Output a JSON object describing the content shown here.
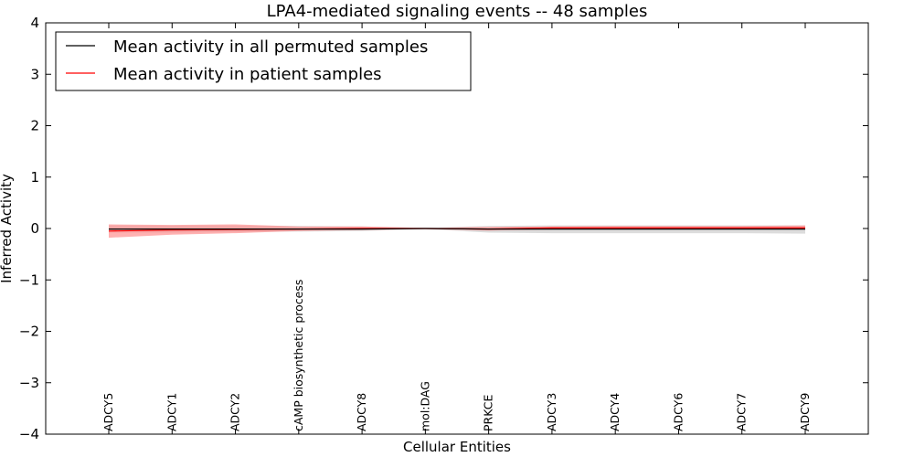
{
  "chart_data": {
    "type": "line",
    "title": "LPA4-mediated signaling events -- 48 samples",
    "xlabel": "Cellular Entities",
    "ylabel": "Inferred Activity",
    "ylim": [
      -4,
      4
    ],
    "yticks": [
      -4,
      -3,
      -2,
      -1,
      0,
      1,
      2,
      3,
      4
    ],
    "ytick_labels": [
      "−4",
      "−3",
      "−2",
      "−1",
      "0",
      "1",
      "2",
      "3",
      "4"
    ],
    "grid": false,
    "legend_position": "top-left",
    "categories": [
      "ADCY5",
      "ADCY1",
      "ADCY2",
      "cAMP biosynthetic process",
      "ADCY8",
      "mol:DAG",
      "PRKCE",
      "ADCY3",
      "ADCY4",
      "ADCY6",
      "ADCY7",
      "ADCY9"
    ],
    "series": [
      {
        "name": "Mean activity in all permuted samples",
        "color": "#000000",
        "values": [
          -0.01,
          -0.01,
          -0.01,
          -0.01,
          -0.01,
          0.0,
          -0.01,
          -0.01,
          -0.01,
          -0.01,
          -0.01,
          -0.01
        ],
        "band_lower": [
          -0.08,
          -0.08,
          -0.07,
          -0.06,
          -0.05,
          -0.01,
          -0.08,
          -0.09,
          -0.09,
          -0.09,
          -0.09,
          -0.1
        ],
        "band_upper": [
          0.06,
          0.06,
          0.06,
          0.05,
          0.04,
          0.01,
          0.05,
          0.06,
          0.06,
          0.06,
          0.06,
          0.06
        ],
        "band_color": "#c0c0c0"
      },
      {
        "name": "Mean activity in patient samples",
        "color": "#ff0000",
        "values": [
          -0.05,
          -0.03,
          -0.02,
          -0.01,
          0.0,
          0.0,
          -0.01,
          0.01,
          0.01,
          0.01,
          0.01,
          0.01
        ],
        "band_lower": [
          -0.18,
          -0.12,
          -0.09,
          -0.05,
          -0.03,
          -0.01,
          -0.04,
          -0.02,
          -0.02,
          -0.02,
          -0.02,
          -0.02
        ],
        "band_upper": [
          0.08,
          0.07,
          0.08,
          0.04,
          0.04,
          0.01,
          0.03,
          0.04,
          0.05,
          0.05,
          0.05,
          0.06
        ],
        "band_color": "#ff9090"
      }
    ]
  }
}
